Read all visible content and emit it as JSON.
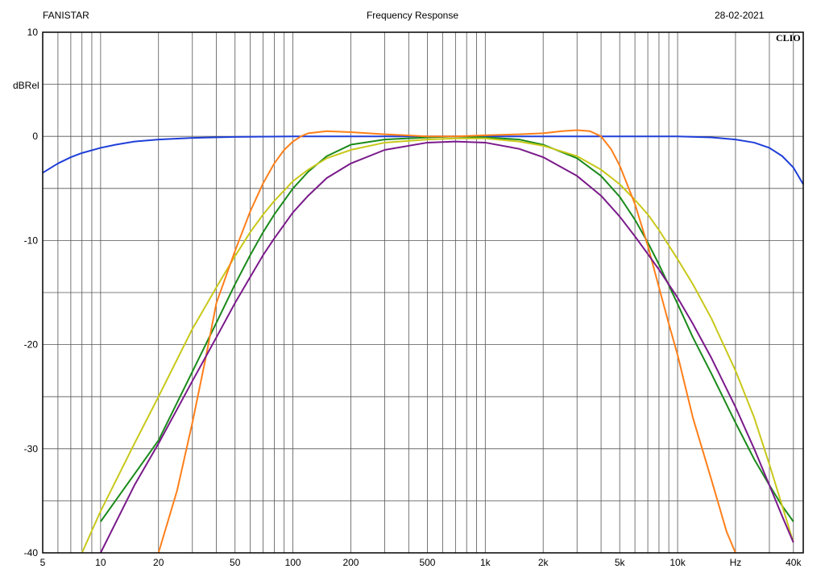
{
  "header": {
    "left": "FANISTAR",
    "center": "Frequency Response",
    "right": "28-02-2021"
  },
  "brand": "CLIO",
  "chart_data": {
    "type": "line",
    "title": "Frequency Response",
    "xscale": "log",
    "xlim": [
      5,
      45000
    ],
    "ylim": [
      -40,
      10
    ],
    "ylabel": "dBRel",
    "xunit": "Hz",
    "grid": true,
    "x_tick_labels": [
      {
        "v": 5,
        "t": "5"
      },
      {
        "v": 10,
        "t": "10"
      },
      {
        "v": 20,
        "t": "20"
      },
      {
        "v": 50,
        "t": "50"
      },
      {
        "v": 100,
        "t": "100"
      },
      {
        "v": 200,
        "t": "200"
      },
      {
        "v": 500,
        "t": "500"
      },
      {
        "v": 1000,
        "t": "1k"
      },
      {
        "v": 2000,
        "t": "2k"
      },
      {
        "v": 5000,
        "t": "5k"
      },
      {
        "v": 10000,
        "t": "10k"
      },
      {
        "v": 20000,
        "t": "Hz"
      },
      {
        "v": 40000,
        "t": "40k"
      }
    ],
    "y_tick_labels": [
      {
        "v": 10,
        "t": "10"
      },
      {
        "v": 0,
        "t": "0"
      },
      {
        "v": -10,
        "t": "-10"
      },
      {
        "v": -20,
        "t": "-20"
      },
      {
        "v": -30,
        "t": "-30"
      },
      {
        "v": -40,
        "t": "-40"
      }
    ],
    "series": [
      {
        "color": "#1f3fd8",
        "x": [
          5,
          6,
          7,
          8,
          10,
          12,
          15,
          20,
          30,
          50,
          100,
          1000,
          10000,
          15000,
          20000,
          25000,
          30000,
          35000,
          40000,
          45000
        ],
        "y": [
          -3.5,
          -2.6,
          -2.0,
          -1.6,
          -1.1,
          -0.8,
          -0.5,
          -0.3,
          -0.15,
          -0.05,
          0,
          0,
          0,
          -0.1,
          -0.3,
          -0.6,
          -1.1,
          -1.9,
          -3.0,
          -4.6
        ]
      },
      {
        "color": "#1a8a1a",
        "x": [
          10,
          20,
          30,
          40,
          50,
          60,
          70,
          80,
          100,
          120,
          150,
          200,
          300,
          500,
          700,
          1000,
          1500,
          2000,
          3000,
          4000,
          5000,
          6000,
          7000,
          8000,
          9000,
          10000,
          12000,
          15000,
          20000,
          25000,
          30000,
          35000,
          40000
        ],
        "y": [
          -37,
          -29.2,
          -22.6,
          -17.9,
          -14.2,
          -11.4,
          -9.2,
          -7.5,
          -5,
          -3.4,
          -1.9,
          -0.8,
          -0.3,
          -0.1,
          0,
          -0.1,
          -0.3,
          -0.8,
          -2.1,
          -3.8,
          -5.8,
          -8,
          -10.2,
          -12.3,
          -14.3,
          -16.1,
          -19.3,
          -22.8,
          -27.5,
          -31,
          -33.5,
          -35.5,
          -37
        ]
      },
      {
        "color": "#c8c81a",
        "x": [
          8,
          10,
          15,
          20,
          30,
          40,
          50,
          60,
          70,
          80,
          100,
          120,
          150,
          200,
          300,
          500,
          700,
          1000,
          1500,
          2000,
          3000,
          4000,
          5000,
          6000,
          7000,
          8000,
          10000,
          12000,
          15000,
          20000,
          25000,
          30000,
          35000,
          40000
        ],
        "y": [
          -40,
          -36,
          -29.5,
          -25,
          -18.5,
          -14.5,
          -11.5,
          -9.2,
          -7.5,
          -6.2,
          -4.3,
          -3.2,
          -2.1,
          -1.3,
          -0.6,
          -0.3,
          -0.2,
          -0.2,
          -0.5,
          -0.9,
          -1.9,
          -3.2,
          -4.6,
          -6.1,
          -7.5,
          -9,
          -11.8,
          -14.2,
          -17.5,
          -22.5,
          -27,
          -31.5,
          -35.5,
          -39
        ]
      },
      {
        "color": "#ff7f1a",
        "x": [
          20,
          25,
          30,
          35,
          40,
          50,
          60,
          70,
          80,
          90,
          100,
          110,
          120,
          150,
          200,
          300,
          500,
          700,
          1000,
          1500,
          2000,
          2500,
          3000,
          3500,
          4000,
          4500,
          5000,
          6000,
          7000,
          8000,
          9000,
          10000,
          12000,
          15000,
          18000,
          20000
        ],
        "y": [
          -40,
          -34,
          -27.5,
          -21.5,
          -16,
          -11,
          -7.2,
          -4.5,
          -2.6,
          -1.3,
          -0.5,
          0,
          0.3,
          0.5,
          0.4,
          0.2,
          0,
          0,
          0.1,
          0.2,
          0.3,
          0.5,
          0.6,
          0.5,
          0,
          -1.2,
          -2.8,
          -6.5,
          -10.5,
          -14.5,
          -18,
          -21,
          -27,
          -33,
          -38,
          -40
        ]
      },
      {
        "color": "#7a1a8a",
        "x": [
          10,
          15,
          20,
          30,
          40,
          50,
          60,
          70,
          80,
          100,
          120,
          150,
          200,
          300,
          500,
          700,
          1000,
          1500,
          2000,
          3000,
          4000,
          5000,
          6000,
          7000,
          8000,
          10000,
          12000,
          15000,
          20000,
          25000,
          30000,
          35000,
          40000
        ],
        "y": [
          -40,
          -33.5,
          -29.5,
          -23.5,
          -19.3,
          -16,
          -13.5,
          -11.4,
          -9.8,
          -7.3,
          -5.7,
          -4,
          -2.6,
          -1.3,
          -0.6,
          -0.5,
          -0.6,
          -1.2,
          -2,
          -3.8,
          -5.7,
          -7.7,
          -9.6,
          -11.3,
          -12.8,
          -15.5,
          -18,
          -21.3,
          -26,
          -30,
          -33.5,
          -36.5,
          -39
        ]
      }
    ]
  }
}
